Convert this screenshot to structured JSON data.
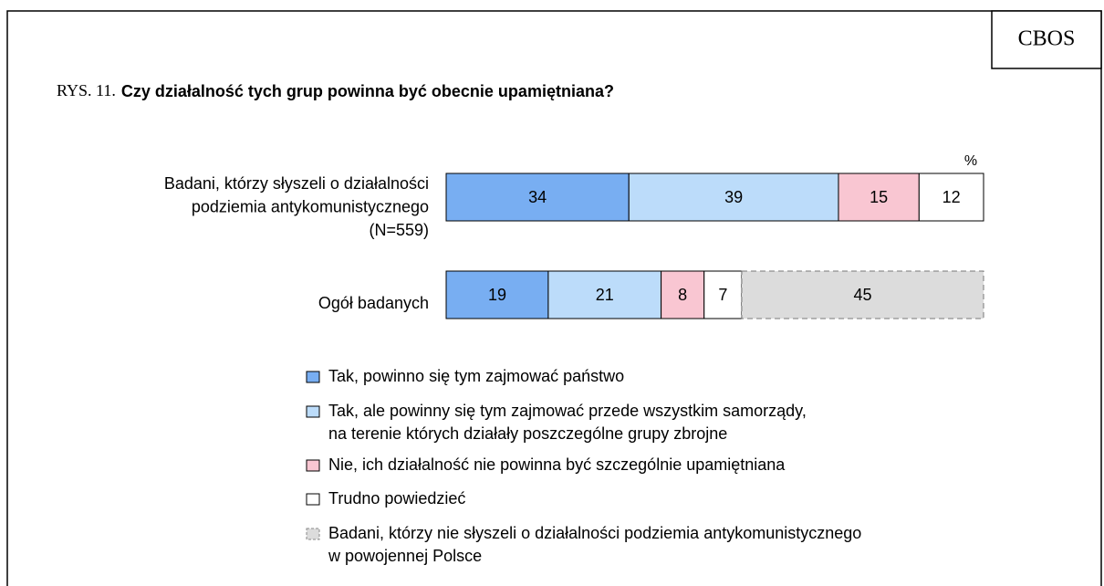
{
  "chart_data": {
    "type": "stacked-bar-horizontal",
    "logo": "CBOS",
    "title_prefix": "RYS. 11.",
    "title": "Czy działalność tych grup powinna być obecnie upamiętniana?",
    "unit_label": "%",
    "categories": [
      "Badani, którzy słyszeli o działalności\npodziemia antykomunistycznego\n(N=559)",
      "Ogół badanych"
    ],
    "xlim": [
      0,
      100
    ],
    "series": [
      {
        "name": "Tak, powinno się tym zajmować państwo",
        "color": "#78aef2",
        "values": [
          34,
          19
        ]
      },
      {
        "name": "Tak, ale powinny się tym zajmować przede wszystkim samorządy,\nna terenie których działały poszczególne grupy zbrojne",
        "color": "#bcdcfa",
        "values": [
          39,
          21
        ]
      },
      {
        "name": "Nie, ich działalność nie powinna być szczególnie upamiętniana",
        "color": "#f9c6d2",
        "values": [
          15,
          8
        ]
      },
      {
        "name": "Trudno powiedzieć",
        "color": "#ffffff",
        "values": [
          12,
          7
        ]
      },
      {
        "name": "Badani, którzy nie słyszeli o działalności podziemia antykomunistycznego\nw powojennej Polsce",
        "color": "#dcdcdc",
        "border": "dashed",
        "values": [
          null,
          45
        ]
      }
    ]
  }
}
